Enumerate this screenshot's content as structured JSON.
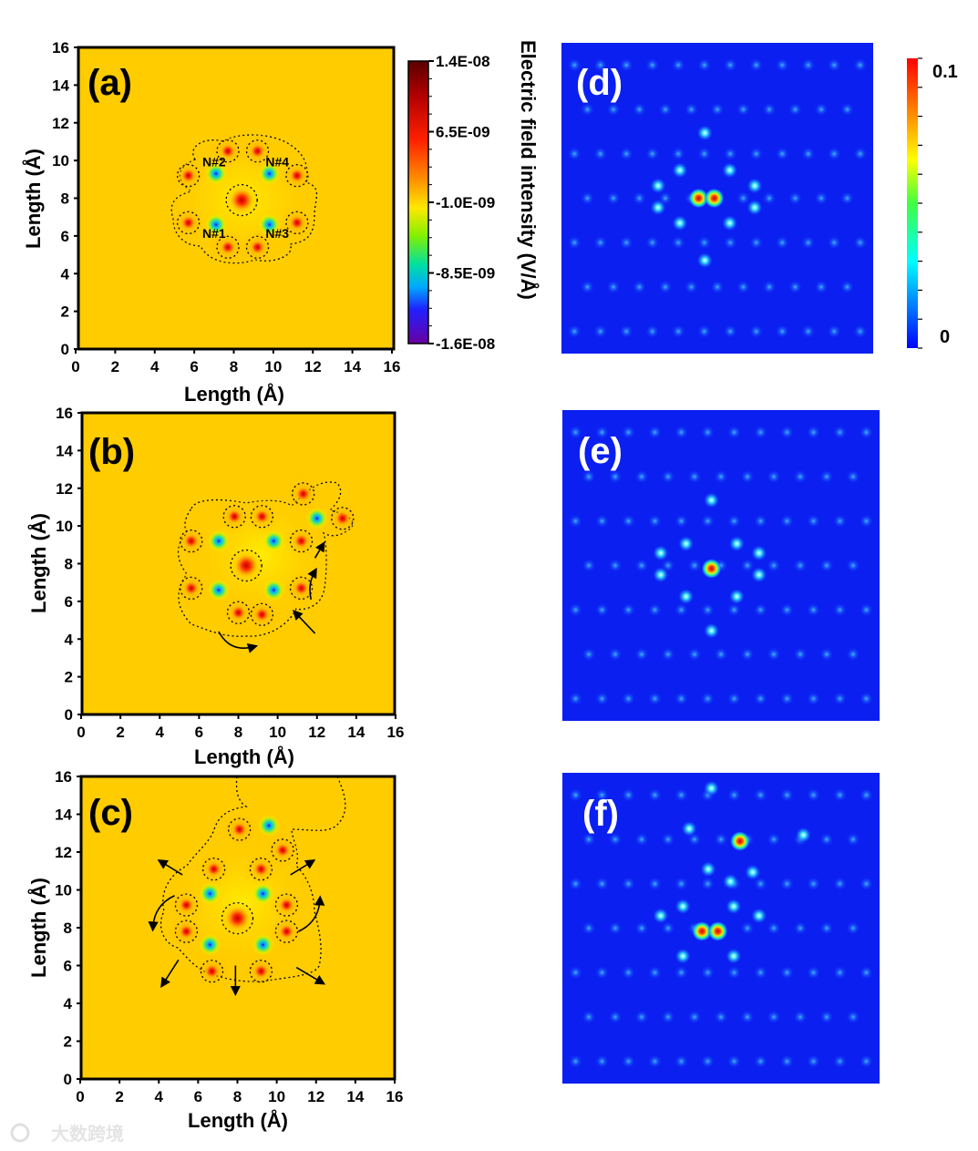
{
  "chart_data": [
    {
      "id": "a",
      "type": "heatmap",
      "panel_label": "(a)",
      "xlabel": "Length (Å)",
      "ylabel": "Length (Å)",
      "xlim": [
        0,
        16
      ],
      "ylim": [
        0,
        16
      ],
      "x_ticks": [
        "0",
        "2",
        "4",
        "6",
        "8",
        "10",
        "12",
        "14",
        "16"
      ],
      "y_ticks": [
        "0",
        "2",
        "4",
        "6",
        "8",
        "10",
        "12",
        "14",
        "16"
      ],
      "site_labels": [
        {
          "text": "N#2",
          "x": 7.0,
          "y": 9.7
        },
        {
          "text": "N#4",
          "x": 10.2,
          "y": 9.7
        },
        {
          "text": "N#1",
          "x": 7.0,
          "y": 5.9
        },
        {
          "text": "N#3",
          "x": 10.2,
          "y": 5.9
        }
      ],
      "negative_peaks": [
        [
          7.1,
          9.3
        ],
        [
          9.8,
          9.3
        ],
        [
          7.1,
          6.6
        ],
        [
          9.8,
          6.6
        ]
      ],
      "positive_peaks": [
        [
          8.4,
          7.9
        ],
        [
          7.7,
          10.5
        ],
        [
          9.2,
          10.5
        ],
        [
          7.7,
          5.4
        ],
        [
          9.2,
          5.4
        ],
        [
          5.7,
          9.2
        ],
        [
          11.2,
          9.2
        ],
        [
          5.7,
          6.7
        ],
        [
          11.2,
          6.7
        ]
      ],
      "arrows": []
    },
    {
      "id": "b",
      "type": "heatmap",
      "panel_label": "(b)",
      "xlabel": "Length (Å)",
      "ylabel": "Length (Å)",
      "xlim": [
        0,
        16
      ],
      "ylim": [
        0,
        16
      ],
      "x_ticks": [
        "0",
        "2",
        "4",
        "6",
        "8",
        "10",
        "12",
        "14",
        "16"
      ],
      "y_ticks": [
        "0",
        "2",
        "4",
        "6",
        "8",
        "10",
        "12",
        "14",
        "16"
      ],
      "site_labels": [],
      "negative_peaks": [
        [
          7.0,
          9.2
        ],
        [
          9.8,
          9.2
        ],
        [
          7.0,
          6.6
        ],
        [
          9.8,
          6.6
        ],
        [
          12.0,
          10.4
        ]
      ],
      "positive_peaks": [
        [
          8.4,
          7.9
        ],
        [
          7.8,
          10.5
        ],
        [
          9.2,
          10.5
        ],
        [
          8.0,
          5.4
        ],
        [
          9.2,
          5.3
        ],
        [
          5.6,
          9.2
        ],
        [
          11.2,
          9.2
        ],
        [
          5.6,
          6.7
        ],
        [
          11.2,
          6.7
        ],
        [
          11.3,
          11.7
        ],
        [
          13.3,
          10.4
        ]
      ],
      "arrows": [
        {
          "from": [
            11.9,
            4.3
          ],
          "to": [
            10.9,
            5.4
          ],
          "curve": 0
        },
        {
          "from": [
            11.7,
            6.1
          ],
          "to": [
            11.9,
            7.6
          ],
          "curve": -0.2
        },
        {
          "from": [
            11.9,
            8.3
          ],
          "to": [
            12.3,
            9.0
          ],
          "curve": 0
        },
        {
          "from": [
            7.0,
            4.4
          ],
          "to": [
            8.8,
            3.6
          ],
          "curve": 0.4
        }
      ]
    },
    {
      "id": "c",
      "type": "heatmap",
      "panel_label": "(c)",
      "xlabel": "Length (Å)",
      "ylabel": "Length (Å)",
      "xlim": [
        0,
        16
      ],
      "ylim": [
        0,
        16
      ],
      "x_ticks": [
        "0",
        "2",
        "4",
        "6",
        "8",
        "10",
        "12",
        "14",
        "16"
      ],
      "y_ticks": [
        "0",
        "2",
        "4",
        "6",
        "8",
        "10",
        "12",
        "14",
        "16"
      ],
      "site_labels": [],
      "negative_peaks": [
        [
          6.6,
          9.8
        ],
        [
          9.3,
          9.8
        ],
        [
          6.6,
          7.1
        ],
        [
          9.3,
          7.1
        ],
        [
          9.6,
          13.4
        ]
      ],
      "positive_peaks": [
        [
          8.0,
          8.5
        ],
        [
          6.8,
          11.1
        ],
        [
          9.2,
          11.1
        ],
        [
          8.1,
          13.2
        ],
        [
          10.3,
          12.1
        ],
        [
          5.4,
          9.2
        ],
        [
          5.4,
          7.8
        ],
        [
          10.5,
          9.2
        ],
        [
          10.5,
          7.8
        ],
        [
          6.7,
          5.7
        ],
        [
          9.2,
          5.7
        ]
      ],
      "arrows": [
        {
          "from": [
            5.2,
            10.8
          ],
          "to": [
            4.1,
            11.5
          ],
          "curve": 0
        },
        {
          "from": [
            10.7,
            10.8
          ],
          "to": [
            11.8,
            11.5
          ],
          "curve": 0
        },
        {
          "from": [
            4.8,
            9.7
          ],
          "to": [
            3.7,
            8.0
          ],
          "curve": 0.3
        },
        {
          "from": [
            11.1,
            7.8
          ],
          "to": [
            12.2,
            9.5
          ],
          "curve": 0.3
        },
        {
          "from": [
            5.0,
            6.3
          ],
          "to": [
            4.2,
            5.0
          ],
          "curve": 0
        },
        {
          "from": [
            7.9,
            6.0
          ],
          "to": [
            7.9,
            4.6
          ],
          "curve": 0
        },
        {
          "from": [
            11.0,
            5.9
          ],
          "to": [
            12.3,
            5.1
          ],
          "curve": 0
        }
      ]
    },
    {
      "id": "d",
      "type": "heatmap",
      "panel_label": "(d)",
      "lattice_spots": 84,
      "hot_spots": [
        [
          0.44,
          0.5
        ],
        [
          0.49,
          0.5
        ]
      ],
      "bright_spots": [
        [
          0.38,
          0.41
        ],
        [
          0.54,
          0.41
        ],
        [
          0.38,
          0.58
        ],
        [
          0.54,
          0.58
        ],
        [
          0.46,
          0.29
        ],
        [
          0.46,
          0.7
        ],
        [
          0.31,
          0.46
        ],
        [
          0.31,
          0.53
        ],
        [
          0.62,
          0.46
        ],
        [
          0.62,
          0.53
        ]
      ]
    },
    {
      "id": "e",
      "type": "heatmap",
      "panel_label": "(e)",
      "lattice_spots": 84,
      "hot_spots": [
        [
          0.47,
          0.51
        ]
      ],
      "bright_spots": [
        [
          0.39,
          0.43
        ],
        [
          0.55,
          0.43
        ],
        [
          0.39,
          0.6
        ],
        [
          0.55,
          0.6
        ],
        [
          0.31,
          0.46
        ],
        [
          0.31,
          0.53
        ],
        [
          0.62,
          0.46
        ],
        [
          0.62,
          0.53
        ],
        [
          0.47,
          0.29
        ],
        [
          0.47,
          0.71
        ]
      ]
    },
    {
      "id": "f",
      "type": "heatmap",
      "panel_label": "(f)",
      "lattice_spots": 84,
      "hot_spots": [
        [
          0.44,
          0.51
        ],
        [
          0.49,
          0.51
        ],
        [
          0.56,
          0.22
        ]
      ],
      "bright_spots": [
        [
          0.38,
          0.43
        ],
        [
          0.54,
          0.43
        ],
        [
          0.38,
          0.59
        ],
        [
          0.54,
          0.59
        ],
        [
          0.46,
          0.31
        ],
        [
          0.53,
          0.35
        ],
        [
          0.4,
          0.18
        ],
        [
          0.47,
          0.05
        ],
        [
          0.6,
          0.32
        ],
        [
          0.76,
          0.2
        ],
        [
          0.31,
          0.46
        ],
        [
          0.62,
          0.46
        ]
      ]
    }
  ],
  "colorbar_left": {
    "tick_labels": [
      "1.4E-08",
      "6.5E-09",
      "-1.0E-09",
      "-8.5E-09",
      "-1.6E-08"
    ],
    "title": "Electric field intensity (V/Å)"
  },
  "colorbar_right": {
    "tick_labels": [
      "0.1",
      "0"
    ]
  },
  "watermark": "大数跨境",
  "colors": {
    "background_field": "#ffcc00",
    "map_blue": "#0a1ff0",
    "frame": "#000000"
  }
}
